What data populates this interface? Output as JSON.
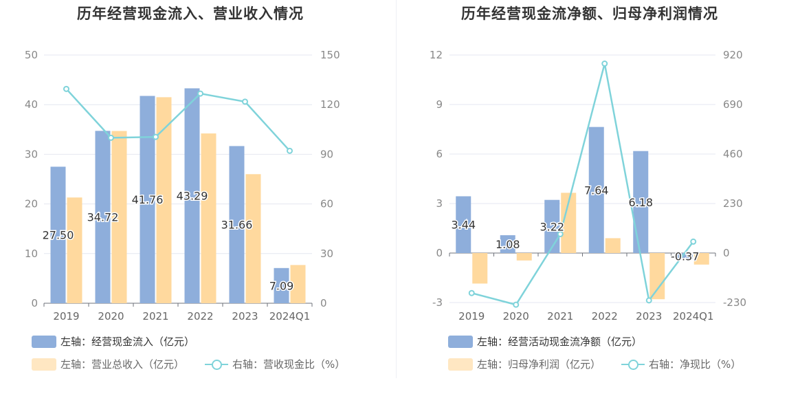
{
  "chart_data": [
    {
      "type": "bar",
      "title": "历年经营现金流入、营业收入情况",
      "categories": [
        "2019",
        "2020",
        "2021",
        "2022",
        "2023",
        "2024Q1"
      ],
      "y_left": {
        "ticks": [
          "0",
          "10",
          "20",
          "30",
          "40",
          "50"
        ],
        "ylim": [
          0,
          50
        ]
      },
      "y_right": {
        "ticks": [
          "0",
          "30",
          "60",
          "90",
          "120",
          "150"
        ],
        "ylim": [
          0,
          150
        ]
      },
      "series": [
        {
          "name": "左轴：经营现金流入（亿元）",
          "axis": "left",
          "kind": "bar",
          "color": "#8eaedb",
          "values": [
            27.5,
            34.72,
            41.76,
            43.29,
            31.66,
            7.09
          ],
          "labels": [
            "27.50",
            "34.72",
            "41.76",
            "43.29",
            "31.66",
            "7.09"
          ]
        },
        {
          "name": "左轴：营业总收入（亿元）",
          "axis": "left",
          "kind": "bar",
          "color": "#ffd99e",
          "values": [
            21.3,
            34.7,
            41.5,
            34.2,
            26.0,
            7.7
          ]
        },
        {
          "name": "右轴：营收现金比（%）",
          "axis": "right",
          "kind": "line",
          "color": "#7fd3da",
          "values": [
            129.5,
            100.0,
            100.5,
            126.7,
            121.8,
            92.1
          ]
        }
      ],
      "grid": true,
      "legend_position": "bottom-left"
    },
    {
      "type": "bar",
      "title": "历年经营现金流净额、归母净利润情况",
      "categories": [
        "2019",
        "2020",
        "2021",
        "2022",
        "2023",
        "2024Q1"
      ],
      "y_left": {
        "ticks": [
          "-3",
          "0",
          "3",
          "6",
          "9",
          "12"
        ],
        "ylim": [
          -3,
          12
        ]
      },
      "y_right": {
        "ticks": [
          "-230",
          "0",
          "230",
          "460",
          "690",
          "920"
        ],
        "ylim": [
          -230,
          920
        ]
      },
      "series": [
        {
          "name": "左轴：经营活动现金流净额（亿元）",
          "axis": "left",
          "kind": "bar",
          "color": "#8eaedb",
          "values": [
            3.44,
            1.08,
            3.22,
            7.64,
            6.18,
            -0.37
          ],
          "labels": [
            "3.44",
            "1.08",
            "3.22",
            "7.64",
            "6.18",
            "-0.37"
          ]
        },
        {
          "name": "左轴：归母净利润（亿元）",
          "axis": "left",
          "kind": "bar",
          "color": "#ffd99e",
          "values": [
            -1.85,
            -0.45,
            3.65,
            0.9,
            -2.8,
            -0.7
          ]
        },
        {
          "name": "右轴：净现比（%）",
          "axis": "right",
          "kind": "line",
          "color": "#7fd3da",
          "values": [
            -186,
            -240,
            88,
            880,
            -220,
            53
          ]
        }
      ],
      "grid": true,
      "legend_position": "bottom-left"
    }
  ]
}
